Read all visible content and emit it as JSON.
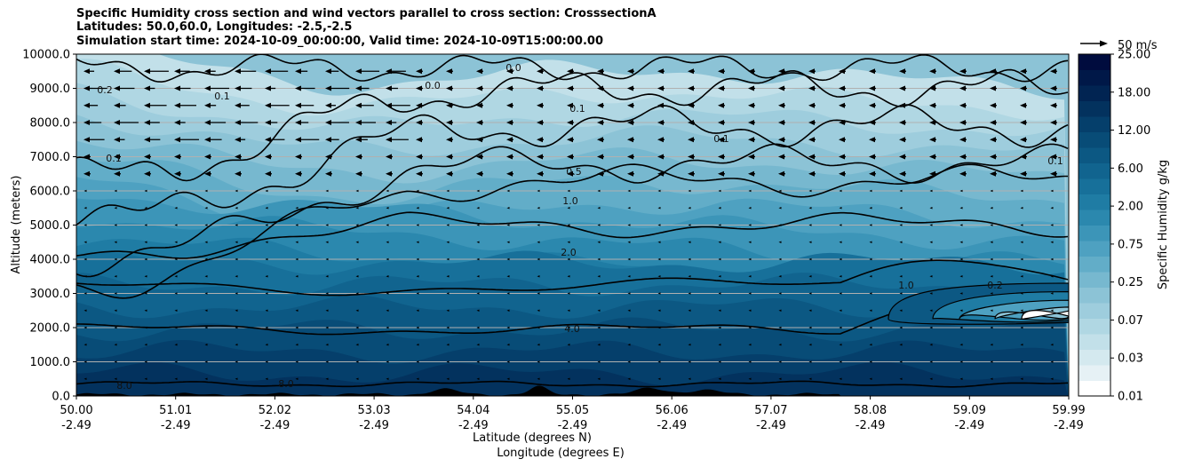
{
  "chart_data": {
    "type": "contourf",
    "title_lines": [
      "Specific Humidity cross section and wind vectors parallel to cross section: CrosssectionA",
      "Latitudes: 50.0,60.0, Longitudes: -2.5,-2.5",
      "Simulation start time: 2024-10-09_00:00:00, Valid time: 2024-10-09T15:00:00.00"
    ],
    "ylabel": "Altitude (meters)",
    "xlabel_lat": "Latitude (degrees N)",
    "xlabel_lon": "Longitude (degrees E)",
    "ylim": [
      0,
      10000
    ],
    "y_ticks": [
      "0.0",
      "1000.0",
      "2000.0",
      "3000.0",
      "4000.0",
      "5000.0",
      "6000.0",
      "7000.0",
      "8000.0",
      "9000.0",
      "10000.0"
    ],
    "x_ticks_lat": [
      "50.00",
      "51.01",
      "52.02",
      "53.03",
      "54.04",
      "55.05",
      "56.06",
      "57.07",
      "58.08",
      "59.09",
      "59.99"
    ],
    "x_ticks_lon": [
      "-2.49",
      "-2.49",
      "-2.49",
      "-2.49",
      "-2.49",
      "-2.49",
      "-2.49",
      "-2.49",
      "-2.49",
      "-2.49",
      "-2.49"
    ],
    "grid": "horizontal",
    "colorbar": {
      "label": "Specific Humidity g/kg",
      "levels_labeled": [
        "0.01",
        "0.03",
        "0.07",
        "0.25",
        "0.75",
        "2.00",
        "6.00",
        "12.00",
        "18.00",
        "25.00"
      ]
    },
    "quiver_key": "50 m/s",
    "contour_labels": [
      "0.0",
      "0.1",
      "0.2",
      "0.5",
      "1.0",
      "2.0",
      "4.0",
      "8.0"
    ],
    "profile": [
      {
        "alt": 0,
        "q": 8.0
      },
      {
        "alt": 1000,
        "q": 6.0
      },
      {
        "alt": 2000,
        "q": 4.0
      },
      {
        "alt": 3000,
        "q": 3.0
      },
      {
        "alt": 4000,
        "q": 2.0
      },
      {
        "alt": 5000,
        "q": 1.2
      },
      {
        "alt": 6000,
        "q": 0.6
      },
      {
        "alt": 7000,
        "q": 0.3
      },
      {
        "alt": 8000,
        "q": 0.15
      },
      {
        "alt": 9000,
        "q": 0.08
      },
      {
        "alt": 10000,
        "q": 0.03
      }
    ],
    "wind_upper_levels_m": [
      9500,
      9000,
      8500,
      8000,
      7500
    ]
  },
  "colors": {
    "cmap": [
      "#ffffff",
      "#e6f1f5",
      "#d4e9ef",
      "#c2e0e9",
      "#b0d7e3",
      "#9ecddd",
      "#8cc3d6",
      "#77b8cf",
      "#62adc8",
      "#4ea1c1",
      "#3c95b8",
      "#2b88ae",
      "#1f7ca4",
      "#17709a",
      "#11648f",
      "#0c5883",
      "#084c77",
      "#053f6b",
      "#03325e",
      "#012452",
      "#001848",
      "#000c3e"
    ],
    "terrain": "#000000",
    "grid": "#b0b0b0"
  }
}
